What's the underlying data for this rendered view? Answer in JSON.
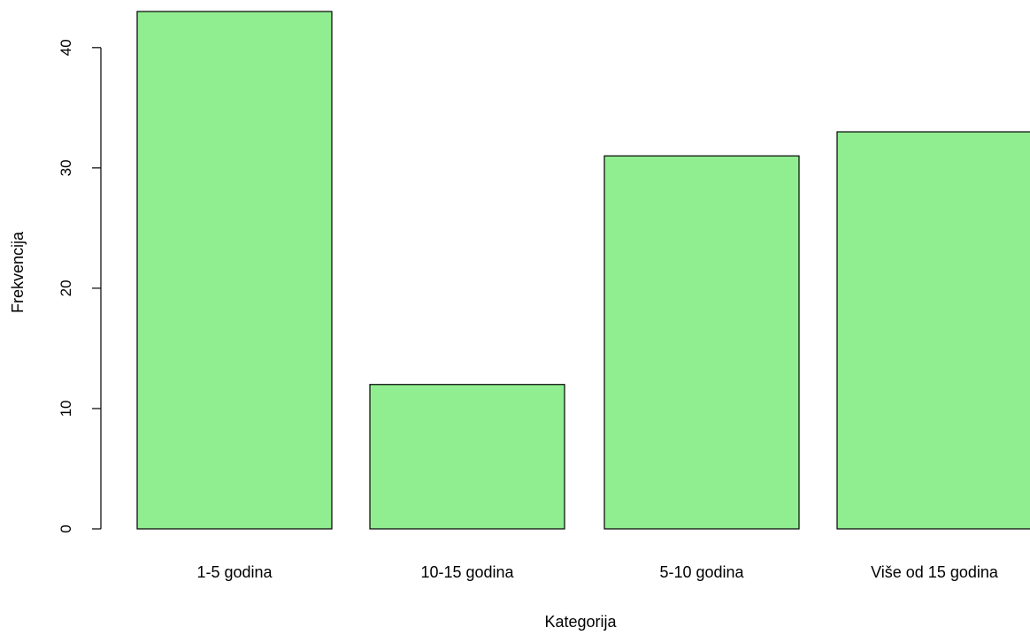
{
  "chart_data": {
    "type": "bar",
    "categories": [
      "1-5 godina",
      "10-15 godina",
      "5-10 godina",
      "Više od 15 godina"
    ],
    "values": [
      43,
      12,
      31,
      33
    ],
    "title": "",
    "xlabel": "Kategorija",
    "ylabel": "Frekvencija",
    "yticks": [
      "0",
      "10",
      "20",
      "30",
      "40"
    ],
    "ylim": [
      0,
      43
    ],
    "grid": false,
    "bar_color": "#90EE90",
    "edge_color": "#000000"
  }
}
